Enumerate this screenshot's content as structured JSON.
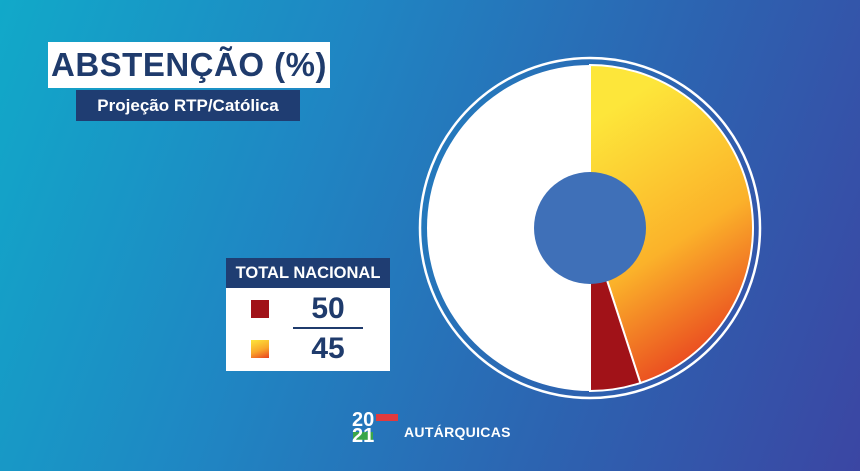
{
  "header": {
    "title": "ABSTENÇÃO (%)",
    "subtitle": "Projeção RTP/Católica"
  },
  "total": {
    "label": "TOTAL NACIONAL",
    "items": [
      {
        "value": "50",
        "color": "#a11218"
      },
      {
        "value": "45",
        "color": "#f9c72c"
      }
    ]
  },
  "chart_data": {
    "type": "pie",
    "title": "ABSTENÇÃO (%)",
    "subtitle": "Projeção RTP/Católica",
    "range_upper": 50,
    "range_lower": 45,
    "colors": {
      "upper_range": "#a11218",
      "lower_range_gradient": [
        "#fde63a",
        "#f9a62a",
        "#e8411f"
      ],
      "remainder": "#ffffff",
      "center": "#3f70b8"
    }
  },
  "logo": {
    "year_top": "20",
    "year_bottom": "21",
    "text": "AUTÁRQUICAS"
  }
}
